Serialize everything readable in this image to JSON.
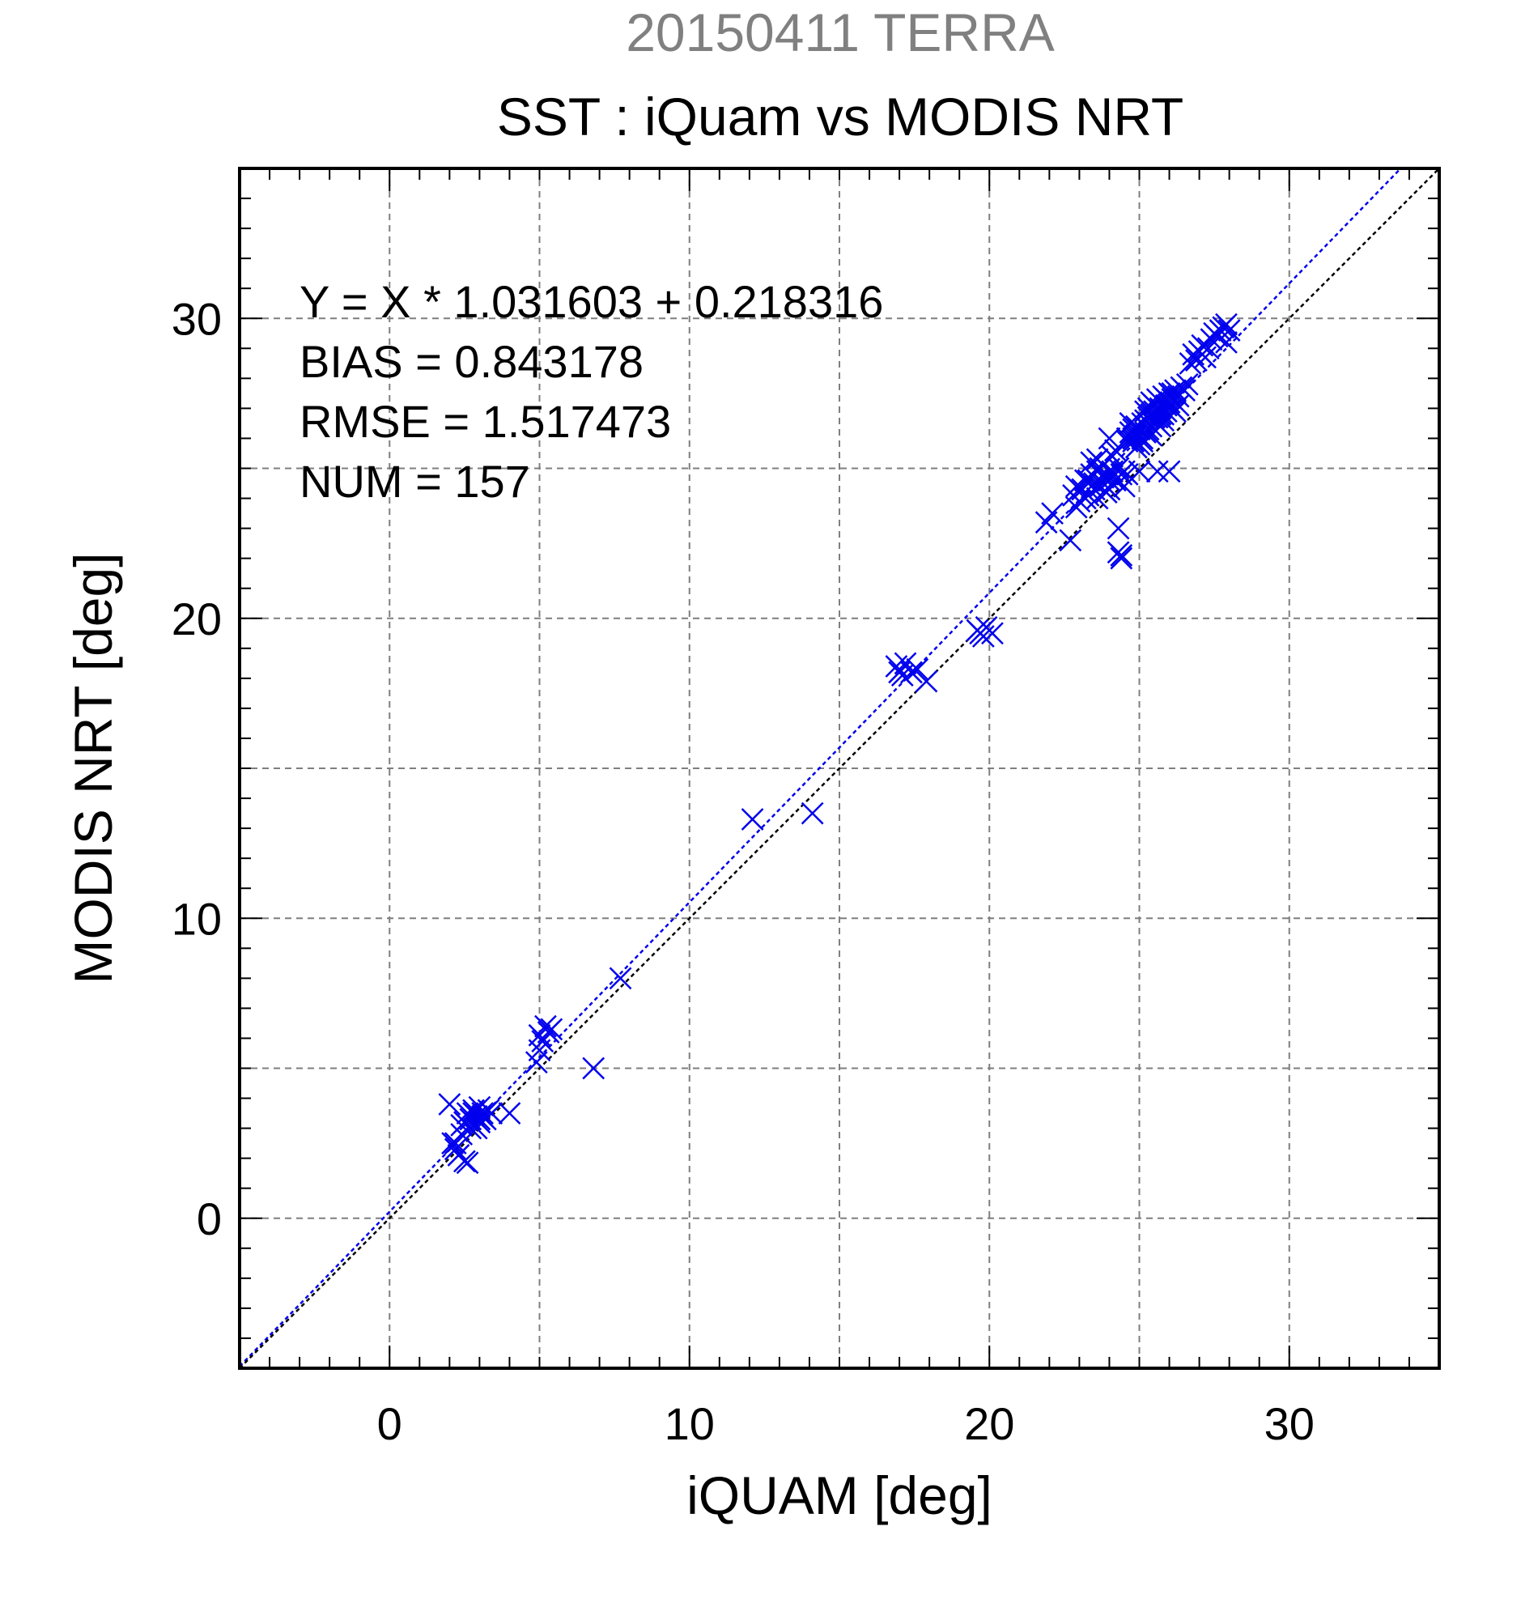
{
  "chart_data": {
    "type": "scatter",
    "title": "SST : iQuam vs MODIS NRT",
    "subtitle": "20150411 TERRA",
    "xlabel": "iQUAM [deg]",
    "ylabel": "MODIS NRT [deg]",
    "xlim": [
      -5,
      35
    ],
    "ylim": [
      -5,
      35
    ],
    "xticks": [
      0,
      10,
      20,
      30
    ],
    "yticks": [
      0,
      10,
      20,
      30
    ],
    "grid": true,
    "stats": [
      "Y = X * 1.031603 + 0.218316",
      "BIAS = 0.843178",
      "RMSE = 1.517473",
      "NUM = 157"
    ],
    "lines": [
      {
        "kind": "regression",
        "slope": 1.031603,
        "intercept": 0.218316,
        "color": "#0000ee"
      },
      {
        "kind": "one-to-one",
        "slope": 1.0,
        "intercept": 0.0,
        "color": "#000000"
      }
    ],
    "series": [
      {
        "marker": "x",
        "color": "#0000ee",
        "points": [
          [
            2.0,
            3.8
          ],
          [
            2.1,
            2.5
          ],
          [
            2.2,
            2.3
          ],
          [
            2.3,
            2.1
          ],
          [
            2.4,
            2.8
          ],
          [
            2.5,
            3.2
          ],
          [
            2.5,
            1.9
          ],
          [
            2.6,
            1.85
          ],
          [
            2.6,
            3.5
          ],
          [
            2.7,
            3.3
          ],
          [
            2.7,
            3.0
          ],
          [
            2.8,
            3.6
          ],
          [
            2.9,
            3.4
          ],
          [
            3.0,
            3.2
          ],
          [
            3.0,
            3.7
          ],
          [
            3.1,
            3.5
          ],
          [
            3.2,
            3.3
          ],
          [
            3.3,
            3.6
          ],
          [
            3.4,
            3.5
          ],
          [
            4.0,
            3.5
          ],
          [
            2.4,
            3.1
          ],
          [
            2.9,
            3.0
          ],
          [
            3.1,
            3.4
          ],
          [
            4.9,
            5.2
          ],
          [
            5.0,
            5.6
          ],
          [
            5.0,
            6.1
          ],
          [
            5.1,
            5.9
          ],
          [
            5.2,
            6.4
          ],
          [
            5.3,
            6.2
          ],
          [
            5.4,
            6.3
          ],
          [
            6.8,
            5.0
          ],
          [
            7.7,
            8.0
          ],
          [
            12.1,
            13.3
          ],
          [
            14.1,
            13.5
          ],
          [
            16.9,
            18.4
          ],
          [
            17.1,
            18.1
          ],
          [
            17.2,
            18.5
          ],
          [
            17.4,
            18.2
          ],
          [
            17.6,
            18.3
          ],
          [
            17.9,
            17.9
          ],
          [
            19.6,
            19.6
          ],
          [
            19.8,
            19.4
          ],
          [
            19.9,
            19.7
          ],
          [
            20.1,
            19.5
          ],
          [
            21.9,
            23.2
          ],
          [
            22.1,
            23.5
          ],
          [
            22.7,
            22.6
          ],
          [
            22.8,
            24.1
          ],
          [
            22.9,
            24.4
          ],
          [
            23.0,
            23.9
          ],
          [
            23.1,
            24.3
          ],
          [
            23.2,
            24.6
          ],
          [
            23.3,
            24.1
          ],
          [
            23.4,
            24.8
          ],
          [
            23.4,
            25.2
          ],
          [
            23.5,
            24.3
          ],
          [
            23.5,
            24.5
          ],
          [
            23.6,
            24.0
          ],
          [
            23.6,
            24.9
          ],
          [
            23.7,
            24.4
          ],
          [
            23.7,
            25.0
          ],
          [
            23.8,
            24.7
          ],
          [
            23.8,
            25.1
          ],
          [
            23.9,
            24.8
          ],
          [
            24.0,
            26.0
          ],
          [
            24.0,
            24.6
          ],
          [
            24.1,
            25.4
          ],
          [
            24.1,
            24.9
          ],
          [
            24.2,
            25.6
          ],
          [
            24.2,
            24.6
          ],
          [
            24.3,
            23.0
          ],
          [
            24.3,
            22.2
          ],
          [
            24.4,
            22.1
          ],
          [
            24.4,
            22.0
          ],
          [
            24.5,
            24.4
          ],
          [
            24.5,
            24.9
          ],
          [
            24.6,
            25.9
          ],
          [
            24.6,
            24.8
          ],
          [
            24.7,
            26.2
          ],
          [
            24.7,
            26.5
          ],
          [
            24.8,
            25.9
          ],
          [
            24.8,
            26.0
          ],
          [
            24.9,
            26.1
          ],
          [
            24.9,
            26.4
          ],
          [
            25.0,
            26.3
          ],
          [
            25.0,
            25.8
          ],
          [
            25.0,
            24.9
          ],
          [
            25.1,
            26.5
          ],
          [
            25.1,
            26.0
          ],
          [
            25.2,
            26.6
          ],
          [
            25.2,
            26.2
          ],
          [
            25.3,
            26.7
          ],
          [
            25.3,
            27.0
          ],
          [
            25.4,
            26.4
          ],
          [
            25.4,
            26.8
          ],
          [
            25.4,
            26.1
          ],
          [
            25.5,
            27.1
          ],
          [
            25.5,
            26.9
          ],
          [
            25.6,
            26.5
          ],
          [
            25.6,
            27.3
          ],
          [
            25.6,
            24.9
          ],
          [
            25.7,
            26.8
          ],
          [
            25.7,
            27.0
          ],
          [
            25.8,
            27.4
          ],
          [
            25.8,
            26.6
          ],
          [
            25.9,
            27.1
          ],
          [
            25.9,
            26.9
          ],
          [
            26.0,
            27.5
          ],
          [
            26.0,
            27.2
          ],
          [
            26.0,
            24.9
          ],
          [
            26.1,
            27.0
          ],
          [
            26.1,
            27.3
          ],
          [
            26.2,
            27.6
          ],
          [
            26.2,
            26.9
          ],
          [
            26.3,
            27.4
          ],
          [
            26.4,
            27.7
          ],
          [
            26.5,
            27.6
          ],
          [
            26.6,
            27.8
          ],
          [
            26.8,
            28.8
          ],
          [
            26.9,
            28.6
          ],
          [
            27.0,
            28.9
          ],
          [
            27.1,
            29.1
          ],
          [
            27.2,
            28.7
          ],
          [
            27.3,
            29.0
          ],
          [
            27.4,
            29.3
          ],
          [
            27.5,
            29.5
          ],
          [
            27.6,
            29.4
          ],
          [
            27.7,
            29.6
          ],
          [
            27.8,
            29.7
          ],
          [
            27.9,
            29.2
          ],
          [
            27.9,
            29.8
          ],
          [
            28.0,
            29.6
          ],
          [
            25.3,
            26.3
          ],
          [
            25.5,
            26.7
          ],
          [
            25.1,
            25.9
          ],
          [
            24.9,
            25.7
          ],
          [
            23.9,
            24.2
          ],
          [
            23.2,
            24.0
          ],
          [
            22.9,
            23.7
          ],
          [
            26.3,
            27.1
          ],
          [
            26.7,
            28.5
          ],
          [
            25.8,
            26.8
          ],
          [
            25.4,
            27.2
          ],
          [
            24.6,
            26.0
          ],
          [
            24.3,
            25.0
          ],
          [
            23.6,
            25.3
          ],
          [
            24.0,
            24.3
          ],
          [
            25.7,
            26.4
          ],
          [
            2.2,
            2.5
          ],
          [
            2.8,
            3.5
          ],
          [
            3.0,
            3.3
          ],
          [
            17.0,
            18.2
          ],
          [
            19.7,
            19.5
          ],
          [
            25.9,
            27.3
          ],
          [
            24.8,
            26.3
          ],
          [
            23.3,
            24.6
          ],
          [
            25.2,
            26.9
          ],
          [
            26.1,
            27.5
          ],
          [
            24.4,
            24.8
          ],
          [
            25.6,
            26.7
          ],
          [
            23.8,
            24.5
          ]
        ]
      }
    ]
  }
}
